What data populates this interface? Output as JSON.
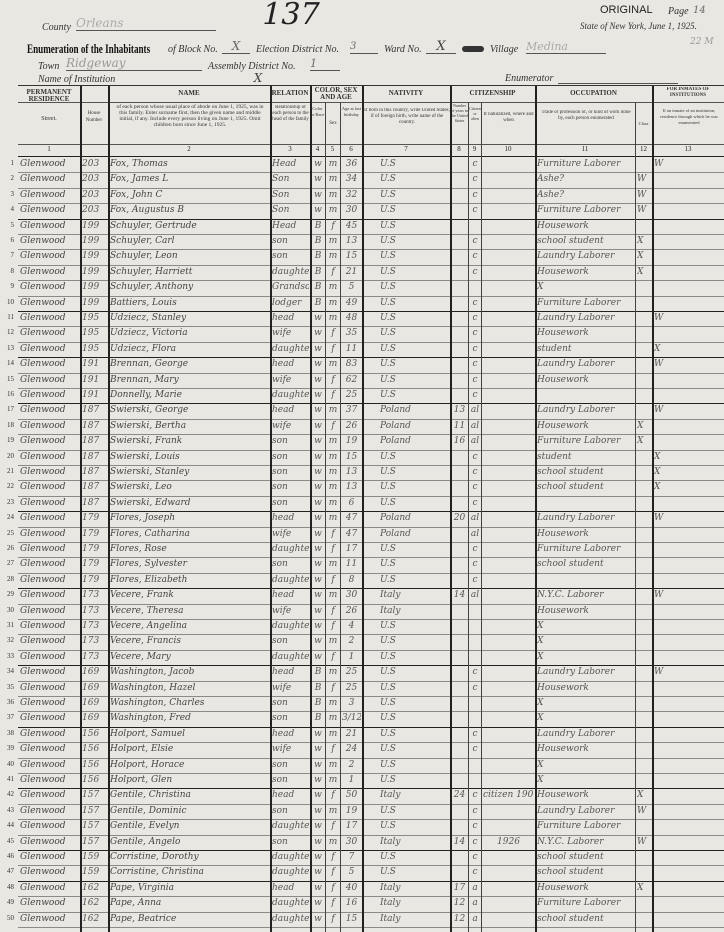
{
  "header": {
    "original": "ORIGINAL",
    "page_label": "Page",
    "page_number": "14",
    "state_line": "State of New York, June 1, 1925.",
    "corner_number": "22 M",
    "county_label": "County",
    "county": "Orleans",
    "title": "Enumeration of the Inhabitants",
    "block_label": "of Block No.",
    "block": "X",
    "election_label": "Election District No.",
    "election_district": "3",
    "big_number": "137",
    "ward_label": "Ward No.",
    "ward": "X",
    "village_label": "Village",
    "village": "Medina",
    "town_label": "Town",
    "town": "Ridgeway",
    "assembly_label": "Assembly District No.",
    "assembly": "1",
    "institution_label": "Name of Institution",
    "institution": "X",
    "enumerator_label": "Enumerator"
  },
  "columns": {
    "groups": [
      "PERMANENT RESIDENCE",
      "NAME",
      "RELATION",
      "COLOR, SEX AND AGE",
      "NATIVITY",
      "CITIZENSHIP",
      "OCCUPATION",
      "FOR INMATES OF INSTITUTIONS"
    ],
    "street": "Street.",
    "house": "House Number",
    "name_desc": "of each person whose usual place of abode on June 1, 1925, was in this family. Enter surname first, then the given name and middle initial, if any. Include every person living on June 1, 1925. Omit children born since June 1, 1925.",
    "relation_desc": "Relationship of each person to the head of the family",
    "color": "Color or Race",
    "sex": "Sex",
    "age": "Age at last birthday",
    "nativity_desc": "If born in this country, write United States; if of foreign birth, write name of the country.",
    "years_us": "Number of years in the United States",
    "citizen": "Citizen or alien",
    "naturalized": "If naturalized, where and when",
    "occupation_desc": "Trade or profession of, or kind of work done by, each person enumerated",
    "class": "Class",
    "inmates_desc": "If an inmate of an institution, residence through which he was enumerated",
    "numbers": [
      "1",
      "2",
      "3",
      "4",
      "5",
      "6",
      "7",
      "8",
      "9",
      "10",
      "11",
      "12",
      "13"
    ]
  },
  "rows": [
    [
      "Glenwood",
      "203",
      "Fox, Thomas",
      "Head",
      "w",
      "m",
      "36",
      "U.S",
      "",
      "c",
      "",
      "Furniture Laborer",
      "",
      "W"
    ],
    [
      "Glenwood",
      "203",
      "Fox, James L",
      "Son",
      "w",
      "m",
      "34",
      "U.S",
      "",
      "c",
      "",
      "Ashe?",
      "W",
      ""
    ],
    [
      "Glenwood",
      "203",
      "Fox, John C",
      "Son",
      "w",
      "m",
      "32",
      "U.S",
      "",
      "c",
      "",
      "Ashe?",
      "W",
      ""
    ],
    [
      "Glenwood",
      "203",
      "Fox, Augustus B",
      "Son",
      "w",
      "m",
      "30",
      "U.S",
      "",
      "c",
      "",
      "Furniture Laborer",
      "W",
      ""
    ],
    [
      "Glenwood",
      "199",
      "Schuyler, Gertrude",
      "Head",
      "B",
      "f",
      "45",
      "U.S",
      "",
      "",
      "",
      "Housework",
      "",
      ""
    ],
    [
      "Glenwood",
      "199",
      "Schuyler, Carl",
      "son",
      "B",
      "m",
      "13",
      "U.S",
      "",
      "c",
      "",
      "school student",
      "X",
      ""
    ],
    [
      "Glenwood",
      "199",
      "Schuyler, Leon",
      "son",
      "B",
      "m",
      "15",
      "U.S",
      "",
      "c",
      "",
      "Laundry Laborer",
      "X",
      ""
    ],
    [
      "Glenwood",
      "199",
      "Schuyler, Harriett",
      "daughter",
      "B",
      "f",
      "21",
      "U.S",
      "",
      "c",
      "",
      "Housework",
      "X",
      ""
    ],
    [
      "Glenwood",
      "199",
      "Schuyler, Anthony",
      "Grandson",
      "B",
      "m",
      "5",
      "U.S",
      "",
      "",
      "",
      "X",
      "",
      ""
    ],
    [
      "Glenwood",
      "199",
      "Battiers, Louis",
      "lodger",
      "B",
      "m",
      "49",
      "U.S",
      "",
      "c",
      "",
      "Furniture Laborer",
      "",
      ""
    ],
    [
      "Glenwood",
      "195",
      "Udziecz, Stanley",
      "head",
      "w",
      "m",
      "48",
      "U.S",
      "",
      "c",
      "",
      "Laundry Laborer",
      "",
      "W"
    ],
    [
      "Glenwood",
      "195",
      "Udziecz, Victoria",
      "wife",
      "w",
      "f",
      "35",
      "U.S",
      "",
      "c",
      "",
      "Housework",
      "",
      ""
    ],
    [
      "Glenwood",
      "195",
      "Udziecz, Flora",
      "daughter",
      "w",
      "f",
      "11",
      "U.S",
      "",
      "c",
      "",
      "student",
      "",
      "X"
    ],
    [
      "Glenwood",
      "191",
      "Brennan, George",
      "head",
      "w",
      "m",
      "83",
      "U.S",
      "",
      "c",
      "",
      "Laundry Laborer",
      "",
      "W"
    ],
    [
      "Glenwood",
      "191",
      "Brennan, Mary",
      "wife",
      "w",
      "f",
      "62",
      "U.S",
      "",
      "c",
      "",
      "Housework",
      "",
      ""
    ],
    [
      "Glenwood",
      "191",
      "Donnelly, Marie",
      "daughter",
      "w",
      "f",
      "25",
      "U.S",
      "",
      "c",
      "",
      "",
      "",
      ""
    ],
    [
      "Glenwood",
      "187",
      "Swierski, George",
      "head",
      "w",
      "m",
      "37",
      "Poland",
      "13",
      "al",
      "",
      "Laundry Laborer",
      "",
      "W"
    ],
    [
      "Glenwood",
      "187",
      "Swierski, Bertha",
      "wife",
      "w",
      "f",
      "26",
      "Poland",
      "11",
      "al",
      "",
      "Housework",
      "X",
      ""
    ],
    [
      "Glenwood",
      "187",
      "Swierski, Frank",
      "son",
      "w",
      "m",
      "19",
      "Poland",
      "16",
      "al",
      "",
      "Furniture Laborer",
      "X",
      ""
    ],
    [
      "Glenwood",
      "187",
      "Swierski, Louis",
      "son",
      "w",
      "m",
      "15",
      "U.S",
      "",
      "c",
      "",
      "student",
      "",
      "X"
    ],
    [
      "Glenwood",
      "187",
      "Swierski, Stanley",
      "son",
      "w",
      "m",
      "13",
      "U.S",
      "",
      "c",
      "",
      "school student",
      "",
      "X"
    ],
    [
      "Glenwood",
      "187",
      "Swierski, Leo",
      "son",
      "w",
      "m",
      "13",
      "U.S",
      "",
      "c",
      "",
      "school student",
      "",
      "X"
    ],
    [
      "Glenwood",
      "187",
      "Swierski, Edward",
      "son",
      "w",
      "m",
      "6",
      "U.S",
      "",
      "c",
      "",
      "",
      "",
      ""
    ],
    [
      "Glenwood",
      "179",
      "Flores, Joseph",
      "head",
      "w",
      "m",
      "47",
      "Poland",
      "20",
      "al",
      "",
      "Laundry Laborer",
      "",
      "W"
    ],
    [
      "Glenwood",
      "179",
      "Flores, Catharina",
      "wife",
      "w",
      "f",
      "47",
      "Poland",
      "",
      "al",
      "",
      "Housework",
      "",
      ""
    ],
    [
      "Glenwood",
      "179",
      "Flores, Rose",
      "daughter",
      "w",
      "f",
      "17",
      "U.S",
      "",
      "c",
      "",
      "Furniture Laborer",
      "",
      ""
    ],
    [
      "Glenwood",
      "179",
      "Flores, Sylvester",
      "son",
      "w",
      "m",
      "11",
      "U.S",
      "",
      "c",
      "",
      "school student",
      "",
      ""
    ],
    [
      "Glenwood",
      "179",
      "Flores, Elizabeth",
      "daughter",
      "w",
      "f",
      "8",
      "U.S",
      "",
      "c",
      "",
      "",
      "",
      ""
    ],
    [
      "Glenwood",
      "173",
      "Vecere, Frank",
      "head",
      "w",
      "m",
      "30",
      "Italy",
      "14",
      "al",
      "",
      "N.Y.C. Laborer",
      "",
      "W"
    ],
    [
      "Glenwood",
      "173",
      "Vecere, Theresa",
      "wife",
      "w",
      "f",
      "26",
      "Italy",
      "",
      "",
      "",
      "Housework",
      "",
      ""
    ],
    [
      "Glenwood",
      "173",
      "Vecere, Angelina",
      "daughter",
      "w",
      "f",
      "4",
      "U.S",
      "",
      "",
      "",
      "X",
      "",
      ""
    ],
    [
      "Glenwood",
      "173",
      "Vecere, Francis",
      "son",
      "w",
      "m",
      "2",
      "U.S",
      "",
      "",
      "",
      "X",
      "",
      ""
    ],
    [
      "Glenwood",
      "173",
      "Vecere, Mary",
      "daughter",
      "w",
      "f",
      "1",
      "U.S",
      "",
      "",
      "",
      "X",
      "",
      ""
    ],
    [
      "Glenwood",
      "169",
      "Washington, Jacob",
      "head",
      "B",
      "m",
      "25",
      "U.S",
      "",
      "c",
      "",
      "Laundry Laborer",
      "",
      "W"
    ],
    [
      "Glenwood",
      "169",
      "Washington, Hazel",
      "wife",
      "B",
      "f",
      "25",
      "U.S",
      "",
      "c",
      "",
      "Housework",
      "",
      ""
    ],
    [
      "Glenwood",
      "169",
      "Washington, Charles",
      "son",
      "B",
      "m",
      "3",
      "U.S",
      "",
      "",
      "",
      "X",
      "",
      ""
    ],
    [
      "Glenwood",
      "169",
      "Washington, Fred",
      "son",
      "B",
      "m",
      "3/12",
      "U.S",
      "",
      "",
      "",
      "X",
      "",
      ""
    ],
    [
      "Glenwood",
      "156",
      "Holport, Samuel",
      "head",
      "w",
      "m",
      "21",
      "U.S",
      "",
      "c",
      "",
      "Laundry Laborer",
      "",
      ""
    ],
    [
      "Glenwood",
      "156",
      "Holport, Elsie",
      "wife",
      "w",
      "f",
      "24",
      "U.S",
      "",
      "c",
      "",
      "Housework",
      "",
      ""
    ],
    [
      "Glenwood",
      "156",
      "Holport, Horace",
      "son",
      "w",
      "m",
      "2",
      "U.S",
      "",
      "",
      "",
      "X",
      "",
      ""
    ],
    [
      "Glenwood",
      "156",
      "Holport, Glen",
      "son",
      "w",
      "m",
      "1",
      "U.S",
      "",
      "",
      "",
      "X",
      "",
      ""
    ],
    [
      "Glenwood",
      "157",
      "Gentile, Christina",
      "head",
      "w",
      "f",
      "50",
      "Italy",
      "24",
      "c",
      "citizen 1907",
      "Housework",
      "X",
      ""
    ],
    [
      "Glenwood",
      "157",
      "Gentile, Dominic",
      "son",
      "w",
      "m",
      "19",
      "U.S",
      "",
      "c",
      "",
      "Laundry Laborer",
      "W",
      ""
    ],
    [
      "Glenwood",
      "157",
      "Gentile, Evelyn",
      "daughter",
      "w",
      "f",
      "17",
      "U.S",
      "",
      "c",
      "",
      "Furniture Laborer",
      "",
      ""
    ],
    [
      "Glenwood",
      "157",
      "Gentile, Angelo",
      "son",
      "w",
      "m",
      "30",
      "Italy",
      "14",
      "c",
      "1926",
      "N.Y.C. Laborer",
      "W",
      ""
    ],
    [
      "Glenwood",
      "159",
      "Corristine, Dorothy",
      "daughter",
      "w",
      "f",
      "7",
      "U.S",
      "",
      "c",
      "",
      "school student",
      "",
      ""
    ],
    [
      "Glenwood",
      "159",
      "Corristine, Christina",
      "daughter",
      "w",
      "f",
      "5",
      "U.S",
      "",
      "c",
      "",
      "school student",
      "",
      ""
    ],
    [
      "Glenwood",
      "162",
      "Pape, Virginia",
      "head",
      "w",
      "f",
      "40",
      "Italy",
      "17",
      "a",
      "",
      "Housework",
      "X",
      ""
    ],
    [
      "Glenwood",
      "162",
      "Pape, Anna",
      "daughter",
      "w",
      "f",
      "16",
      "Italy",
      "12",
      "a",
      "",
      "Furniture Laborer",
      "",
      ""
    ],
    [
      "Glenwood",
      "162",
      "Pape, Beatrice",
      "daughter",
      "w",
      "f",
      "15",
      "Italy",
      "12",
      "a",
      "",
      "school student",
      "",
      ""
    ]
  ],
  "family_separators_after": [
    4,
    10,
    13,
    16,
    23,
    28,
    33,
    37,
    41,
    45,
    47
  ]
}
